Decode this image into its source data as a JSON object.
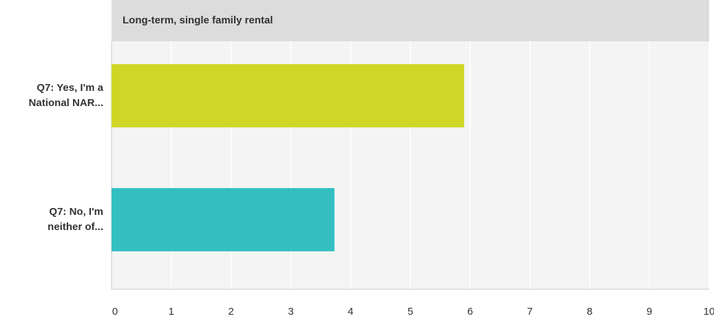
{
  "chart_data": {
    "type": "barh",
    "title": "Long-term, single family rental",
    "categories": [
      "Q7: Yes, I'm a National NAR...",
      "Q7: No, I'm neither of..."
    ],
    "values": [
      5.9,
      3.73
    ],
    "colors": [
      "#d0d626",
      "#33bfc1"
    ],
    "xlim": [
      0,
      10
    ],
    "xticks": [
      0,
      1,
      2,
      3,
      4,
      5,
      6,
      7,
      8,
      9,
      10
    ],
    "grid": true
  }
}
